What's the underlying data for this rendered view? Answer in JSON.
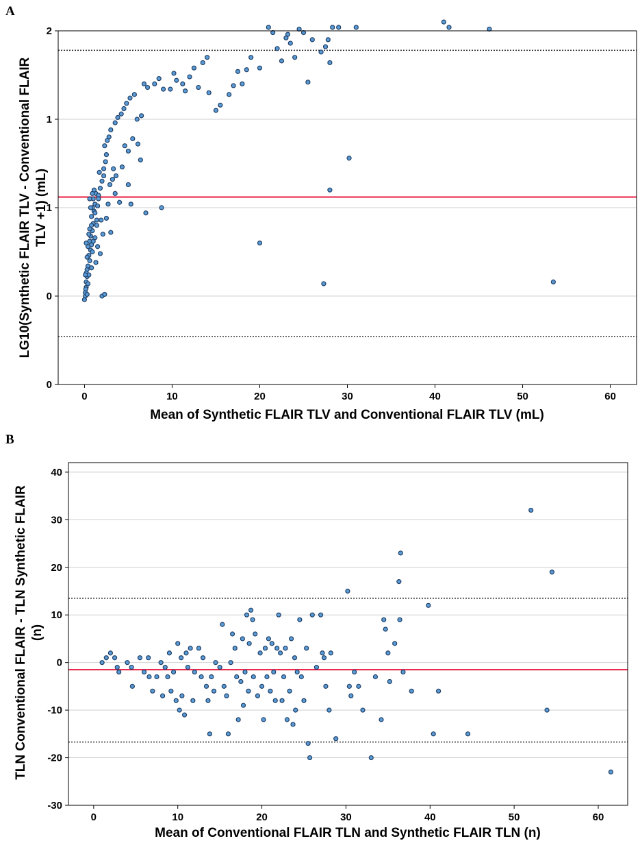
{
  "chart_data": [
    {
      "panel": "A",
      "type": "scatter",
      "title": "",
      "xlabel": "Mean of Synthetic FLAIR TLV and Conventional FLAIR TLV (mL)",
      "ylabel_lines": [
        "LG10(Synthetic FLAIR TLV - Conventional FLAIR",
        "TLV +1)  (mL)"
      ],
      "xlim": [
        -3,
        63
      ],
      "ylim": [
        -0.5,
        1.5
      ],
      "xticks": [
        0,
        10,
        20,
        30,
        40,
        50,
        60
      ],
      "yticks": [
        -0.5,
        0,
        0.5,
        1,
        1.5
      ],
      "ytick_labels": [
        "0",
        "0",
        "1",
        "1",
        "2"
      ],
      "grid": "horizontal",
      "mean_line": 0.56,
      "loa_upper": 1.39,
      "loa_lower": -0.23,
      "points": [
        [
          0.0,
          -0.02
        ],
        [
          0.1,
          0.0
        ],
        [
          0.1,
          0.02
        ],
        [
          0.2,
          0.05
        ],
        [
          0.2,
          0.08
        ],
        [
          0.3,
          0.11
        ],
        [
          0.3,
          0.15
        ],
        [
          0.4,
          0.17
        ],
        [
          0.2,
          0.13
        ],
        [
          0.5,
          0.12
        ],
        [
          0.4,
          0.07
        ],
        [
          0.3,
          0.01
        ],
        [
          0.6,
          0.2
        ],
        [
          0.5,
          0.23
        ],
        [
          0.7,
          0.26
        ],
        [
          0.6,
          0.31
        ],
        [
          0.8,
          0.29
        ],
        [
          0.7,
          0.34
        ],
        [
          0.9,
          0.37
        ],
        [
          1.0,
          0.41
        ],
        [
          0.8,
          0.45
        ],
        [
          1.1,
          0.48
        ],
        [
          0.9,
          0.5
        ],
        [
          1.2,
          0.52
        ],
        [
          1.0,
          0.55
        ],
        [
          1.3,
          0.58
        ],
        [
          1.1,
          0.6
        ],
        [
          0.6,
          0.55
        ],
        [
          0.7,
          0.5
        ],
        [
          0.9,
          0.58
        ],
        [
          0.5,
          0.35
        ],
        [
          0.4,
          0.28
        ],
        [
          0.8,
          0.4
        ],
        [
          1.2,
          0.47
        ],
        [
          1.5,
          0.51
        ],
        [
          1.4,
          0.43
        ],
        [
          1.6,
          0.57
        ],
        [
          1.8,
          0.61
        ],
        [
          2.0,
          0.65
        ],
        [
          1.7,
          0.7
        ],
        [
          2.2,
          0.72
        ],
        [
          2.4,
          0.76
        ],
        [
          2.5,
          0.8
        ],
        [
          2.3,
          0.85
        ],
        [
          2.6,
          0.88
        ],
        [
          2.8,
          0.9
        ],
        [
          3.0,
          0.94
        ],
        [
          3.5,
          0.98
        ],
        [
          3.8,
          1.01
        ],
        [
          4.2,
          1.03
        ],
        [
          4.5,
          1.06
        ],
        [
          4.8,
          1.09
        ],
        [
          5.2,
          1.12
        ],
        [
          5.7,
          1.14
        ],
        [
          6.0,
          1.0
        ],
        [
          6.5,
          1.02
        ],
        [
          6.8,
          1.2
        ],
        [
          7.2,
          1.18
        ],
        [
          8.0,
          1.2
        ],
        [
          8.5,
          1.23
        ],
        [
          9.0,
          1.17
        ],
        [
          9.8,
          1.17
        ],
        [
          10.2,
          1.26
        ],
        [
          10.5,
          1.22
        ],
        [
          11.2,
          1.2
        ],
        [
          11.5,
          1.16
        ],
        [
          12.0,
          1.24
        ],
        [
          12.5,
          1.29
        ],
        [
          13.0,
          1.18
        ],
        [
          13.5,
          1.32
        ],
        [
          14.0,
          1.35
        ],
        [
          14.2,
          1.15
        ],
        [
          15.0,
          1.05
        ],
        [
          15.5,
          1.08
        ],
        [
          16.5,
          1.14
        ],
        [
          17.0,
          1.19
        ],
        [
          17.5,
          1.27
        ],
        [
          18.0,
          1.2
        ],
        [
          18.5,
          1.28
        ],
        [
          19.0,
          1.35
        ],
        [
          20.0,
          1.29
        ],
        [
          21.0,
          1.52
        ],
        [
          22.0,
          1.4
        ],
        [
          22.5,
          1.33
        ],
        [
          23.0,
          1.46
        ],
        [
          23.5,
          1.43
        ],
        [
          24.0,
          1.35
        ],
        [
          25.0,
          1.49
        ],
        [
          25.5,
          1.21
        ],
        [
          26.0,
          1.45
        ],
        [
          27.0,
          1.38
        ],
        [
          27.5,
          1.41
        ],
        [
          28.0,
          1.32
        ],
        [
          28.3,
          1.52
        ],
        [
          27.8,
          1.45
        ],
        [
          21.5,
          1.49
        ],
        [
          23.2,
          1.48
        ],
        [
          24.5,
          1.51
        ],
        [
          29.0,
          1.52
        ],
        [
          31.0,
          1.52
        ],
        [
          41.0,
          1.55
        ],
        [
          41.6,
          1.52
        ],
        [
          46.2,
          1.51
        ],
        [
          5.0,
          0.63
        ],
        [
          5.3,
          0.52
        ],
        [
          7.0,
          0.47
        ],
        [
          8.8,
          0.5
        ],
        [
          3.5,
          0.58
        ],
        [
          2.1,
          0.35
        ],
        [
          2.5,
          0.44
        ],
        [
          1.8,
          0.24
        ],
        [
          1.5,
          0.28
        ],
        [
          3.0,
          0.36
        ],
        [
          4.0,
          0.53
        ],
        [
          20.0,
          0.3
        ],
        [
          27.3,
          0.07
        ],
        [
          53.5,
          0.08
        ],
        [
          30.2,
          0.78
        ],
        [
          28.0,
          0.6
        ],
        [
          2.0,
          0.0
        ],
        [
          2.3,
          0.01
        ],
        [
          1.0,
          0.31
        ],
        [
          1.3,
          0.19
        ],
        [
          0.8,
          0.16
        ],
        [
          1.9,
          0.43
        ],
        [
          2.7,
          0.52
        ],
        [
          3.2,
          0.66
        ],
        [
          3.6,
          0.68
        ],
        [
          4.3,
          0.73
        ],
        [
          4.6,
          0.85
        ],
        [
          5.0,
          0.82
        ],
        [
          5.5,
          0.89
        ],
        [
          6.1,
          0.86
        ],
        [
          6.4,
          0.77
        ],
        [
          3.3,
          0.72
        ],
        [
          2.9,
          0.63
        ],
        [
          2.2,
          0.68
        ],
        [
          1.6,
          0.55
        ],
        [
          1.4,
          0.4
        ],
        [
          1.2,
          0.33
        ],
        [
          0.9,
          0.25
        ],
        [
          0.6,
          0.38
        ],
        [
          0.3,
          0.22
        ],
        [
          0.2,
          0.3
        ],
        [
          0.1,
          0.12
        ],
        [
          0.15,
          0.04
        ]
      ]
    },
    {
      "panel": "B",
      "type": "scatter",
      "title": "",
      "xlabel": "Mean of Conventional FLAIR TLN and Synthetic FLAIR TLN (n)",
      "ylabel_lines": [
        "TLN Conventional FLAIR - TLN Synthetic FLAIR",
        "(n)"
      ],
      "xlim": [
        -3,
        63.5
      ],
      "ylim": [
        -30,
        42
      ],
      "xticks": [
        0,
        10,
        20,
        30,
        40,
        50,
        60
      ],
      "yticks": [
        -30,
        -20,
        -10,
        0,
        10,
        20,
        30,
        40
      ],
      "ytick_labels": [
        "-30",
        "-20",
        "-10",
        "0",
        "10",
        "20",
        "30",
        "40"
      ],
      "grid": "horizontal",
      "mean_line": -1.5,
      "loa_upper": 13.5,
      "loa_lower": -16.7,
      "points": [
        [
          1.0,
          0
        ],
        [
          1.5,
          1
        ],
        [
          2.0,
          2
        ],
        [
          2.5,
          1
        ],
        [
          2.8,
          -1
        ],
        [
          3.0,
          -2
        ],
        [
          4.0,
          0
        ],
        [
          4.5,
          -1
        ],
        [
          4.6,
          -5
        ],
        [
          5.5,
          1
        ],
        [
          6.0,
          -2
        ],
        [
          6.5,
          1
        ],
        [
          6.6,
          -3
        ],
        [
          7.0,
          -6
        ],
        [
          7.5,
          -3
        ],
        [
          8.0,
          0
        ],
        [
          8.2,
          -7
        ],
        [
          8.5,
          -1
        ],
        [
          8.8,
          -3
        ],
        [
          9.0,
          2
        ],
        [
          9.2,
          -6
        ],
        [
          9.5,
          -2
        ],
        [
          9.8,
          -8
        ],
        [
          10.0,
          4
        ],
        [
          10.2,
          -10
        ],
        [
          10.4,
          1
        ],
        [
          10.5,
          -7
        ],
        [
          10.8,
          -11
        ],
        [
          11.0,
          2
        ],
        [
          11.2,
          -1
        ],
        [
          11.5,
          3
        ],
        [
          11.8,
          -8
        ],
        [
          12.0,
          -2
        ],
        [
          12.5,
          3
        ],
        [
          12.8,
          -3
        ],
        [
          13.0,
          1
        ],
        [
          13.4,
          -5
        ],
        [
          13.6,
          -8
        ],
        [
          13.8,
          -15
        ],
        [
          14.0,
          -3
        ],
        [
          14.3,
          -6
        ],
        [
          14.5,
          0
        ],
        [
          15.0,
          -1
        ],
        [
          15.3,
          8
        ],
        [
          15.5,
          -5
        ],
        [
          15.8,
          -7
        ],
        [
          16.0,
          -15
        ],
        [
          16.3,
          0
        ],
        [
          16.5,
          6
        ],
        [
          16.8,
          3
        ],
        [
          17.0,
          -3
        ],
        [
          17.2,
          -12
        ],
        [
          17.5,
          -4
        ],
        [
          17.7,
          5
        ],
        [
          17.8,
          -9
        ],
        [
          18.0,
          -2
        ],
        [
          18.2,
          10
        ],
        [
          18.4,
          -6
        ],
        [
          18.5,
          4
        ],
        [
          18.7,
          11
        ],
        [
          18.9,
          9
        ],
        [
          19.0,
          -3
        ],
        [
          19.2,
          6
        ],
        [
          19.5,
          -7
        ],
        [
          19.8,
          2
        ],
        [
          20.0,
          -5
        ],
        [
          20.2,
          -12
        ],
        [
          20.4,
          3
        ],
        [
          20.6,
          -3
        ],
        [
          20.8,
          5
        ],
        [
          21.0,
          -6
        ],
        [
          21.2,
          4
        ],
        [
          21.4,
          -2
        ],
        [
          21.6,
          -8
        ],
        [
          21.8,
          3
        ],
        [
          22.0,
          10
        ],
        [
          22.2,
          2
        ],
        [
          22.4,
          -8
        ],
        [
          22.6,
          -3
        ],
        [
          22.8,
          3
        ],
        [
          23.0,
          -12
        ],
        [
          23.3,
          -6
        ],
        [
          23.5,
          5
        ],
        [
          23.7,
          -13
        ],
        [
          23.9,
          1
        ],
        [
          24.0,
          -10
        ],
        [
          24.2,
          -2
        ],
        [
          24.5,
          9
        ],
        [
          24.7,
          -3
        ],
        [
          25.0,
          -8
        ],
        [
          25.3,
          3
        ],
        [
          25.5,
          -17
        ],
        [
          25.7,
          -20
        ],
        [
          26.0,
          10
        ],
        [
          26.5,
          -1
        ],
        [
          27.0,
          10
        ],
        [
          27.2,
          2
        ],
        [
          27.4,
          1
        ],
        [
          27.6,
          -5
        ],
        [
          28.0,
          -10
        ],
        [
          28.2,
          2
        ],
        [
          28.8,
          -16
        ],
        [
          30.2,
          15
        ],
        [
          30.4,
          -5
        ],
        [
          30.6,
          -7
        ],
        [
          31.0,
          -2
        ],
        [
          31.5,
          -5
        ],
        [
          32.0,
          -10
        ],
        [
          33.0,
          -20
        ],
        [
          33.5,
          -3
        ],
        [
          34.2,
          -12
        ],
        [
          34.5,
          9
        ],
        [
          34.7,
          7
        ],
        [
          35.0,
          2
        ],
        [
          35.2,
          -4
        ],
        [
          35.8,
          4
        ],
        [
          36.4,
          9
        ],
        [
          36.3,
          17
        ],
        [
          36.5,
          23
        ],
        [
          36.8,
          -2
        ],
        [
          37.8,
          -6
        ],
        [
          39.8,
          12
        ],
        [
          40.4,
          -15
        ],
        [
          41.0,
          -6
        ],
        [
          44.5,
          -15
        ],
        [
          52.0,
          32
        ],
        [
          53.9,
          -10
        ],
        [
          54.5,
          19
        ],
        [
          61.5,
          -23
        ]
      ]
    }
  ],
  "panels": {
    "a": {
      "letter": "A"
    },
    "b": {
      "letter": "B"
    }
  },
  "colors": {
    "point_fill": "#5b9bd5",
    "point_stroke": "#1f3f66",
    "mean_line": "#e8183f",
    "loa_line": "#222222",
    "grid": "#cfcfcf"
  }
}
